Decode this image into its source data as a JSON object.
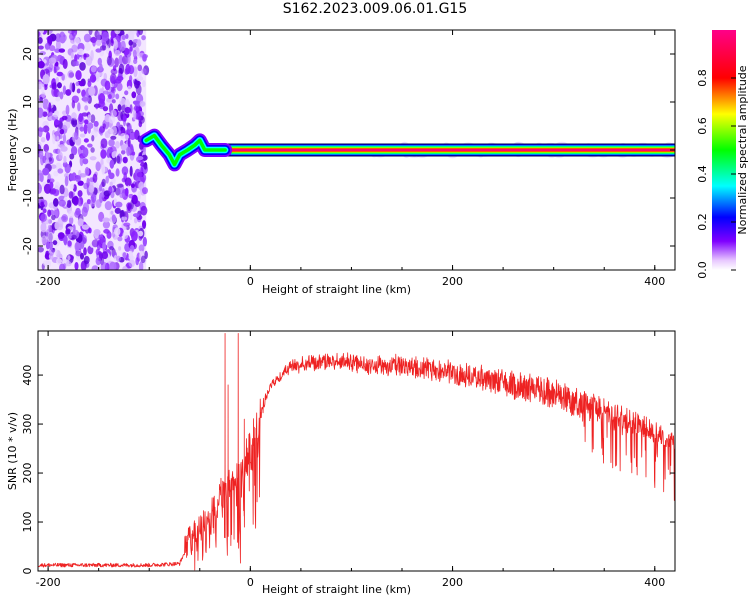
{
  "title": "S162.2023.009.06.01.G15",
  "chart_data": [
    {
      "type": "heatmap",
      "title": "S162.2023.009.06.01.G15",
      "xlabel": "Height of straight line (km)",
      "ylabel": "Frequency (Hz)",
      "xlim": [
        -210,
        420
      ],
      "ylim": [
        -25,
        25
      ],
      "x_ticks": [
        -200,
        0,
        200,
        400
      ],
      "y_ticks": [
        -20,
        -10,
        0,
        10,
        20
      ],
      "colorbar": {
        "label": "Normalized spectral amplitude",
        "range": [
          0,
          1
        ],
        "ticks": [
          0.0,
          0.2,
          0.4,
          0.6,
          0.8
        ],
        "colors": [
          "#ffffff",
          "#7f00ff",
          "#0000ff",
          "#00ffff",
          "#00ff00",
          "#ffff00",
          "#ff0000",
          "#ff00aa"
        ]
      },
      "noise_region_x": [
        -210,
        -103
      ],
      "signal": {
        "frequency_hz": 0,
        "start_x": -103,
        "end_x": 420,
        "wobble_points": [
          [
            -103,
            2
          ],
          [
            -95,
            3
          ],
          [
            -88,
            1
          ],
          [
            -80,
            -1
          ],
          [
            -75,
            -3
          ],
          [
            -70,
            -1
          ],
          [
            -62,
            0
          ],
          [
            -55,
            1
          ],
          [
            -50,
            2
          ],
          [
            -45,
            0
          ],
          [
            -40,
            0
          ],
          [
            -30,
            0
          ],
          [
            -25,
            0
          ]
        ]
      }
    },
    {
      "type": "line",
      "xlabel": "Height of straight line (km)",
      "ylabel": "SNR (10 * v/v)",
      "xlim": [
        -210,
        420
      ],
      "ylim": [
        0,
        490
      ],
      "x_ticks": [
        -200,
        0,
        200,
        400
      ],
      "y_ticks": [
        0,
        100,
        200,
        300,
        400
      ],
      "color": "#ee2222",
      "envelope": [
        [
          -210,
          12
        ],
        [
          -100,
          12
        ],
        [
          -70,
          15
        ],
        [
          -60,
          60
        ],
        [
          -50,
          90
        ],
        [
          -40,
          120
        ],
        [
          -30,
          160
        ],
        [
          -20,
          180
        ],
        [
          -10,
          200
        ],
        [
          0,
          260
        ],
        [
          10,
          330
        ],
        [
          20,
          390
        ],
        [
          40,
          430
        ],
        [
          60,
          440
        ],
        [
          100,
          440
        ],
        [
          150,
          438
        ],
        [
          200,
          425
        ],
        [
          250,
          410
        ],
        [
          300,
          390
        ],
        [
          350,
          350
        ],
        [
          400,
          305
        ],
        [
          420,
          285
        ]
      ],
      "spikes": [
        [
          -25,
          485
        ],
        [
          -22,
          380
        ],
        [
          -12,
          485
        ],
        [
          -6,
          310
        ]
      ]
    }
  ]
}
